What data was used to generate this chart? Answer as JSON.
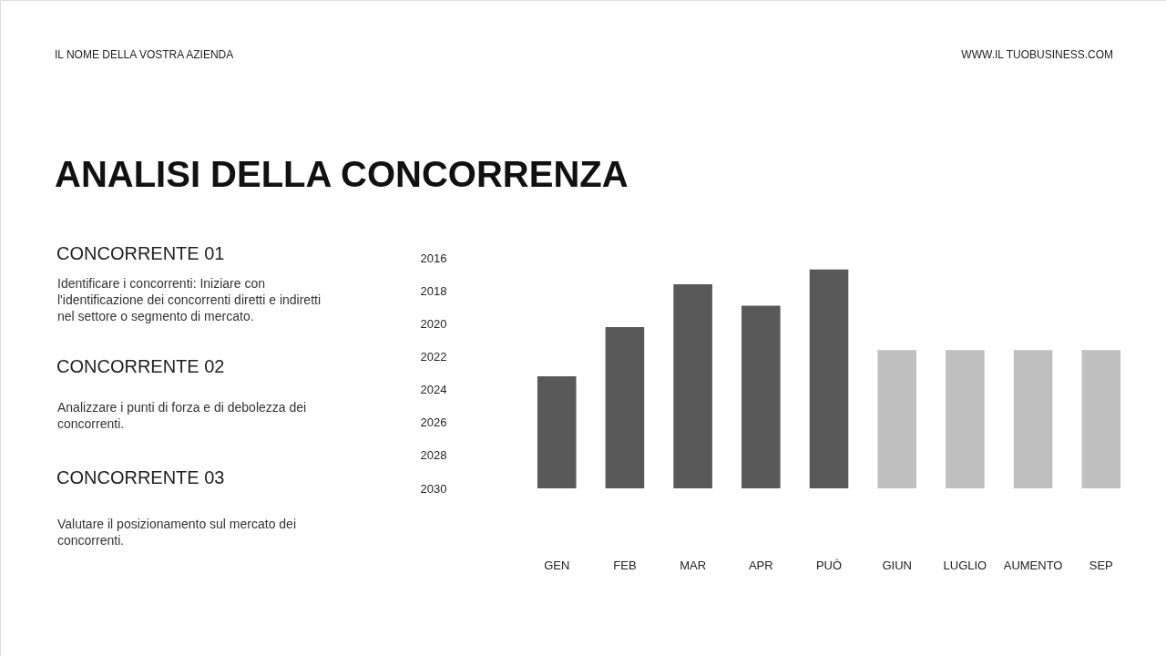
{
  "chart_data": {
    "type": "bar",
    "title": "ANALISI DELLA CONCORRENZA",
    "categories": [
      "GEN",
      "FEB",
      "MAR",
      "APR",
      "PUÒ",
      "GIUN",
      "LUGLIO",
      "AUMENTO",
      "SEP"
    ],
    "base": [
      2030,
      2030,
      2030,
      2030,
      2030,
      2030,
      2030,
      2030,
      2030
    ],
    "values": [
      -6.8,
      -9.8,
      -12.4,
      -11.1,
      -13.3,
      -8.4,
      -8.4,
      -8.4,
      -8.4
    ],
    "colors": [
      "#595959",
      "#595959",
      "#595959",
      "#595959",
      "#595959",
      "#bfbfbf",
      "#bfbfbf",
      "#bfbfbf",
      "#bfbfbf"
    ],
    "ylim": [
      2030,
      2016
    ],
    "yticks": [
      2016,
      2018,
      2020,
      2022,
      2024,
      2026,
      2028,
      2030
    ],
    "grid": false,
    "annotations": [
      "IL NOME DELLA VOSTRA AZIENDA",
      "WWW.IL TUOBUSINESS.COM",
      "CONCORRENTE 01",
      "Identificare i concorrenti: Iniziare con\nl'identificazione dei concorrenti diretti e indiretti\nnel settore o segmento di mercato.",
      "CONCORRENTE 02",
      "Analizzare i punti di forza e di debolezza dei\nconcorrenti.",
      "CONCORRENTE 03",
      "Valutare il posizionamento sul mercato dei\nconcorrenti."
    ]
  }
}
